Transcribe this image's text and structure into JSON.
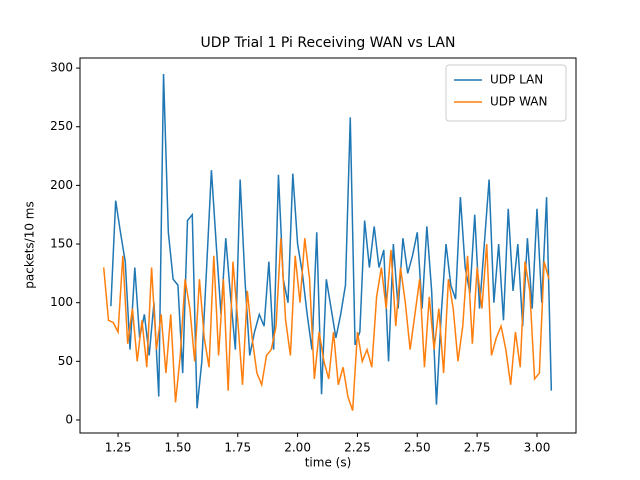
{
  "chart_data": {
    "type": "line",
    "title": "UDP Trial 1 Pi Receiving WAN vs LAN",
    "xlabel": "time (s)",
    "ylabel": "packets/10 ms",
    "xlim": [
      1.091,
      3.163
    ],
    "ylim": [
      -11.1,
      308.6
    ],
    "xticks": [
      1.25,
      {
        "value": 1.5,
        "label": "1.50"
      },
      1.75,
      {
        "value": 2,
        "label": "2.00"
      },
      2.25,
      {
        "value": 2.5,
        "label": "2.50"
      },
      2.75,
      {
        "value": 3,
        "label": "3.00"
      }
    ],
    "yticks": [
      0,
      50,
      100,
      150,
      200,
      250,
      300
    ],
    "legend": "upper right",
    "series": [
      {
        "name": "UDP LAN",
        "color": "#1f77b4",
        "x": [
          1.22,
          1.24,
          1.26,
          1.28,
          1.3,
          1.32,
          1.34,
          1.36,
          1.38,
          1.4,
          1.42,
          1.44,
          1.46,
          1.48,
          1.5,
          1.52,
          1.54,
          1.56,
          1.58,
          1.6,
          1.62,
          1.64,
          1.66,
          1.68,
          1.7,
          1.72,
          1.74,
          1.76,
          1.78,
          1.8,
          1.82,
          1.84,
          1.86,
          1.88,
          1.9,
          1.92,
          1.94,
          1.96,
          1.98,
          2.0,
          2.02,
          2.04,
          2.06,
          2.08,
          2.1,
          2.12,
          2.14,
          2.16,
          2.18,
          2.2,
          2.22,
          2.24,
          2.26,
          2.28,
          2.3,
          2.32,
          2.34,
          2.36,
          2.38,
          2.4,
          2.42,
          2.44,
          2.46,
          2.48,
          2.5,
          2.52,
          2.54,
          2.56,
          2.58,
          2.6,
          2.62,
          2.64,
          2.66,
          2.68,
          2.7,
          2.72,
          2.74,
          2.76,
          2.78,
          2.8,
          2.82,
          2.84,
          2.86,
          2.88,
          2.9,
          2.92,
          2.94,
          2.96,
          2.98,
          3.0,
          3.02,
          3.04,
          3.06
        ],
        "values": [
          97,
          187,
          160,
          135,
          60,
          130,
          70,
          90,
          55,
          100,
          20,
          295,
          160,
          120,
          115,
          40,
          170,
          175,
          10,
          50,
          130,
          213,
          150,
          90,
          155,
          105,
          60,
          205,
          120,
          55,
          75,
          90,
          80,
          135,
          60,
          209,
          120,
          100,
          210,
          150,
          125,
          90,
          60,
          160,
          22,
          120,
          95,
          70,
          90,
          115,
          258,
          64,
          75,
          170,
          130,
          165,
          130,
          145,
          50,
          150,
          95,
          155,
          125,
          140,
          160,
          95,
          165,
          110,
          13,
          90,
          150,
          115,
          103,
          190,
          130,
          108,
          175,
          95,
          150,
          205,
          100,
          150,
          85,
          180,
          110,
          150,
          80,
          155,
          95,
          180,
          100,
          190,
          25
        ]
      },
      {
        "name": "UDP WAN",
        "color": "#ff7f0e",
        "x": [
          1.19,
          1.21,
          1.23,
          1.25,
          1.27,
          1.29,
          1.31,
          1.33,
          1.35,
          1.37,
          1.39,
          1.41,
          1.43,
          1.45,
          1.47,
          1.49,
          1.51,
          1.53,
          1.55,
          1.57,
          1.59,
          1.61,
          1.63,
          1.65,
          1.67,
          1.69,
          1.71,
          1.73,
          1.75,
          1.77,
          1.79,
          1.81,
          1.83,
          1.85,
          1.87,
          1.89,
          1.91,
          1.93,
          1.95,
          1.97,
          1.99,
          2.01,
          2.03,
          2.05,
          2.07,
          2.09,
          2.11,
          2.13,
          2.15,
          2.17,
          2.19,
          2.21,
          2.23,
          2.25,
          2.27,
          2.29,
          2.31,
          2.33,
          2.35,
          2.37,
          2.39,
          2.41,
          2.43,
          2.45,
          2.47,
          2.49,
          2.51,
          2.53,
          2.55,
          2.57,
          2.59,
          2.61,
          2.63,
          2.65,
          2.67,
          2.69,
          2.71,
          2.73,
          2.75,
          2.77,
          2.79,
          2.81,
          2.83,
          2.85,
          2.87,
          2.89,
          2.91,
          2.93,
          2.95,
          2.97,
          2.99,
          3.01,
          3.03,
          3.05
        ],
        "values": [
          130,
          85,
          83,
          75,
          140,
          65,
          95,
          50,
          85,
          45,
          130,
          60,
          90,
          40,
          90,
          15,
          55,
          120,
          95,
          50,
          120,
          70,
          45,
          140,
          55,
          120,
          25,
          135,
          85,
          30,
          110,
          70,
          40,
          30,
          55,
          60,
          80,
          155,
          85,
          55,
          140,
          100,
          155,
          120,
          35,
          75,
          50,
          35,
          75,
          30,
          45,
          20,
          8,
          75,
          50,
          60,
          45,
          105,
          130,
          95,
          145,
          80,
          130,
          100,
          60,
          90,
          120,
          45,
          105,
          60,
          95,
          40,
          120,
          95,
          50,
          80,
          140,
          65,
          130,
          95,
          150,
          55,
          70,
          80,
          60,
          30,
          75,
          45,
          135,
          110,
          35,
          40,
          135,
          120
        ]
      }
    ]
  }
}
